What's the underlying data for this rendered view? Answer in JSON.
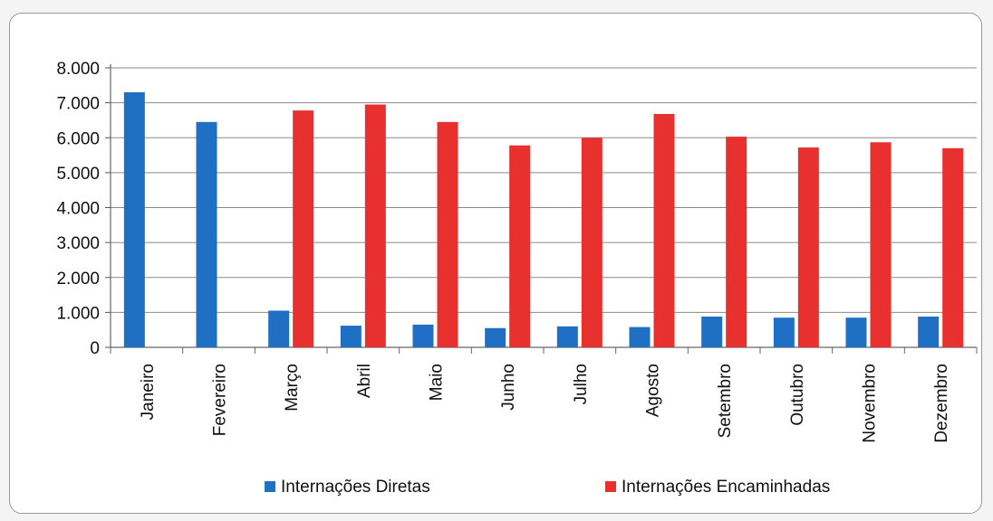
{
  "chart_data": {
    "type": "bar",
    "categories": [
      "Janeiro",
      "Fevereiro",
      "Março",
      "Abril",
      "Maio",
      "Junho",
      "Julho",
      "Agosto",
      "Setembro",
      "Outubro",
      "Novembro",
      "Dezembro"
    ],
    "series": [
      {
        "name": "Internações Diretas",
        "color": "#1f6fc5",
        "values": [
          7300,
          6450,
          1050,
          620,
          650,
          550,
          600,
          580,
          880,
          850,
          850,
          880
        ]
      },
      {
        "name": "Internações Encaminhadas",
        "color": "#e8312f",
        "values": [
          0,
          0,
          6780,
          6950,
          6450,
          5780,
          6000,
          6680,
          6030,
          5720,
          5870,
          5700
        ]
      }
    ],
    "ylim": [
      0,
      8000
    ],
    "yticks": [
      0,
      1000,
      2000,
      3000,
      4000,
      5000,
      6000,
      7000,
      8000
    ],
    "ytick_labels": [
      "0",
      "1.000",
      "2.000",
      "3.000",
      "4.000",
      "5.000",
      "6.000",
      "7.000",
      "8.000"
    ],
    "grid": true,
    "legend_position": "bottom",
    "title": "",
    "xlabel": "",
    "ylabel": ""
  }
}
